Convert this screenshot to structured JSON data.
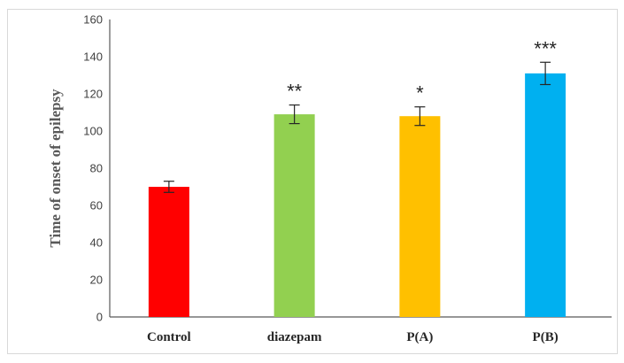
{
  "chart_data": {
    "type": "bar",
    "categories": [
      "Control",
      "diazepam",
      "P(A)",
      "P(B)"
    ],
    "values": [
      70,
      109,
      108,
      131
    ],
    "errors": [
      3,
      5,
      5,
      6
    ],
    "significance": [
      "",
      "**",
      "*",
      "***"
    ],
    "colors": [
      "#ff0000",
      "#92d050",
      "#ffc000",
      "#00b0f0"
    ],
    "ylabel": "Time of onset of epilepsy",
    "xlabel": "",
    "ylim": [
      0,
      160
    ],
    "yticks": [
      "0",
      "20",
      "40",
      "60",
      "80",
      "100",
      "120",
      "140",
      "160"
    ],
    "grid": false,
    "legend": "none"
  }
}
